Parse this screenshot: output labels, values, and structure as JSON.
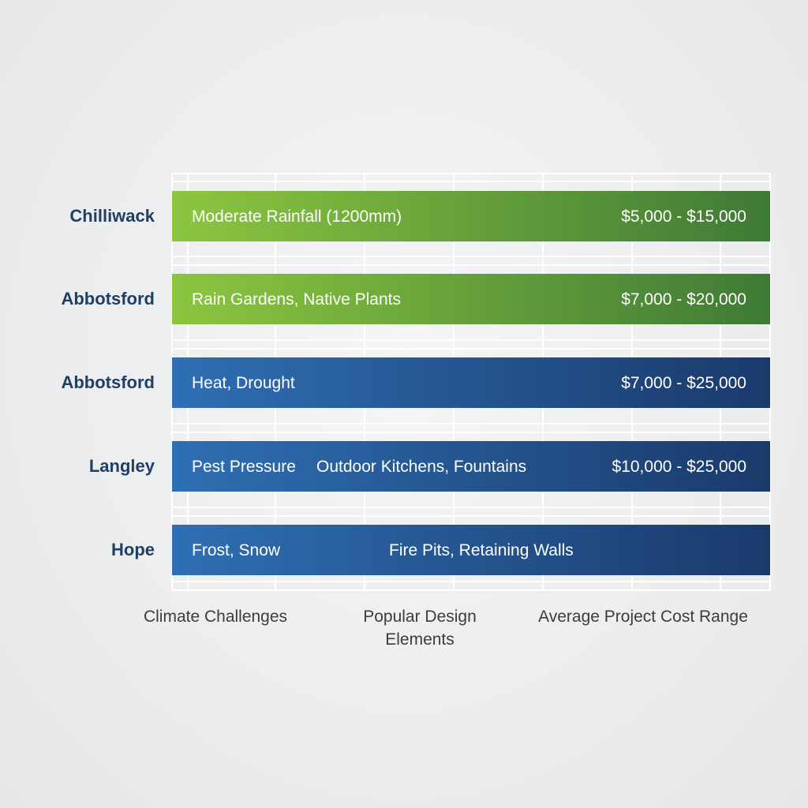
{
  "chart_data": {
    "type": "table",
    "columns": [
      "Climate Challenges",
      "Popular Design Elements",
      "Average Project Cost Range"
    ],
    "rows": [
      {
        "label": "Chilliwack",
        "theme": "green",
        "cells": [
          {
            "text": "Moderate Rainfall (1200mm)",
            "column": 0
          },
          {
            "text": "$5,000 - $15,000",
            "column": 2
          }
        ]
      },
      {
        "label": "Abbotsford",
        "theme": "green",
        "cells": [
          {
            "text": "Rain Gardens, Native Plants",
            "column": 0
          },
          {
            "text": "$7,000 - $20,000",
            "column": 2
          }
        ]
      },
      {
        "label": "Abbotsford",
        "theme": "blue",
        "cells": [
          {
            "text": "Heat, Drought",
            "column": 0
          },
          {
            "text": "$7,000 - $25,000",
            "column": 2
          }
        ]
      },
      {
        "label": "Langley",
        "theme": "blue",
        "cells": [
          {
            "text": "Pest Pressure",
            "column": 0
          },
          {
            "text": "Outdoor Kitchens, Fountains",
            "column": 1
          },
          {
            "text": "$10,000 - $25,000",
            "column": 2
          }
        ]
      },
      {
        "label": "Hope",
        "theme": "blue",
        "cells": [
          {
            "text": "Frost, Snow",
            "column": 0
          },
          {
            "text": "Fire Pits, Retaining Walls",
            "column": 1
          }
        ]
      }
    ],
    "colors": {
      "green_start": "#8cc63f",
      "green_end": "#3f7a36",
      "blue_start": "#2f6fb3",
      "blue_end": "#1a3a6b",
      "row_label": "#1f3f66",
      "grid": "#ffffff"
    },
    "grid": true
  }
}
